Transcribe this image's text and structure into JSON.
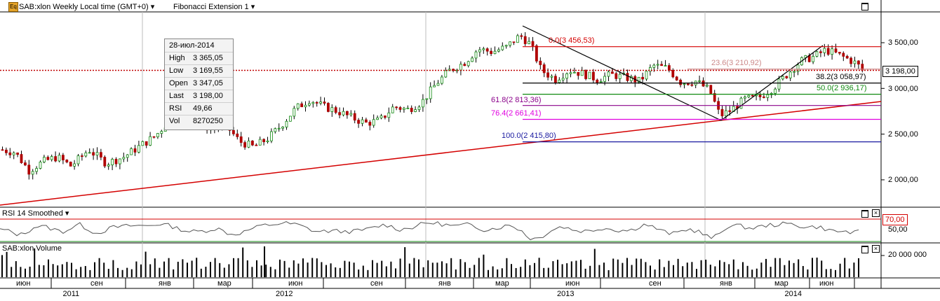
{
  "header": {
    "logo": "Eq",
    "symbol_label": "SAB:xlon Weekly Local time (GMT+0)",
    "indicator_label": "Fibonacci Extension 1"
  },
  "tooltip": {
    "date": "28-июл-2014",
    "rows": [
      {
        "key": "High",
        "value": "3 365,05"
      },
      {
        "key": "Low",
        "value": "3 169,55"
      },
      {
        "key": "Open",
        "value": "3 347,05"
      },
      {
        "key": "Last",
        "value": "3 198,00"
      },
      {
        "key": "RSI",
        "value": "49,66"
      },
      {
        "key": "Vol",
        "value": "8270250"
      }
    ]
  },
  "price_axis": {
    "ticks": [
      {
        "value": 3500,
        "label": "3 500,00"
      },
      {
        "value": 3000,
        "label": "3 000,00"
      },
      {
        "value": 2500,
        "label": "2 500,00"
      },
      {
        "value": 2000,
        "label": "2 000,00"
      }
    ],
    "last_price": 3198,
    "last_price_label": "3 198,00"
  },
  "rsi_pane": {
    "title": "RSI 14 Smoothed",
    "ticks": [
      {
        "value": 70,
        "label": "70,00"
      },
      {
        "value": 50,
        "label": "50,00"
      }
    ]
  },
  "volume_pane": {
    "title": "SAB:xlon Volume",
    "ticks": [
      {
        "value": 20000000,
        "label": "20 000 000"
      }
    ]
  },
  "time_axis": {
    "months": [
      "июн",
      "сен",
      "янв",
      "мар",
      "июн",
      "сен",
      "янв",
      "мар",
      "июн",
      "сен",
      "янв",
      "мар",
      "июн"
    ],
    "years": [
      "2011",
      "2012",
      "2013",
      "2014"
    ]
  },
  "chart_data": {
    "type": "candlestick",
    "x_range": [
      "2011-04",
      "2014-08"
    ],
    "price_range": [
      1700,
      3750
    ],
    "fibonacci_levels": [
      {
        "ratio": 0.0,
        "label": "0.0(3 456,53)",
        "value": 3456.53,
        "color": "#d40000"
      },
      {
        "ratio": 23.6,
        "label": "23.6(3 210,92)",
        "value": 3210.92,
        "color": "#cc8a8a"
      },
      {
        "ratio": 38.2,
        "label": "38.2(3 058,97)",
        "value": 3058.97,
        "color": "#000000"
      },
      {
        "ratio": 50.0,
        "label": "50.0(2 936,17)",
        "value": 2936.17,
        "color": "#118a11"
      },
      {
        "ratio": 61.8,
        "label": "61.8(2 813,36)",
        "value": 2813.36,
        "color": "#8a008a"
      },
      {
        "ratio": 76.4,
        "label": "76.4(2 661,41)",
        "value": 2661.41,
        "color": "#e000e0"
      },
      {
        "ratio": 100.0,
        "label": "100.0(2 415,80)",
        "value": 2415.8,
        "color": "#1a1aa0"
      }
    ],
    "colors": {
      "up": "#118a11",
      "down": "#b00000",
      "trend": "#d40000",
      "rsi": "#555555"
    }
  }
}
